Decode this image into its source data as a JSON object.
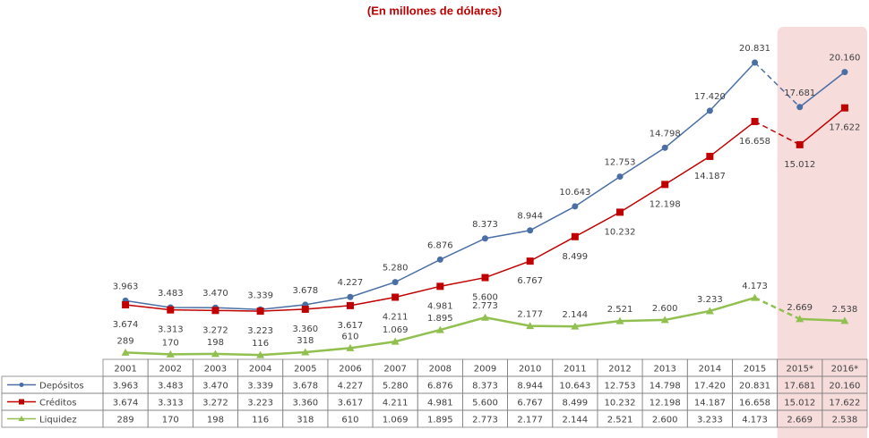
{
  "chart_data": {
    "type": "line",
    "subtitle": "(En millones de dólares)",
    "categories": [
      "2001",
      "2002",
      "2003",
      "2004",
      "2005",
      "2006",
      "2007",
      "2008",
      "2009",
      "2010",
      "2011",
      "2012",
      "2013",
      "2014",
      "2015",
      "2015*",
      "2016*"
    ],
    "series": [
      {
        "name": "Depósitos",
        "color": "#4a6fa5",
        "marker": "circle",
        "values": [
          3963,
          3483,
          3470,
          3339,
          3678,
          4227,
          5280,
          6876,
          8373,
          8944,
          10643,
          12753,
          14798,
          17420,
          20831,
          17681,
          20160
        ],
        "value_labels": [
          "3.963",
          "3.483",
          "3.470",
          "3.339",
          "3.678",
          "4.227",
          "5.280",
          "6.876",
          "8.373",
          "8.944",
          "10.643",
          "12.753",
          "14.798",
          "17.420",
          "20.831",
          "17.681",
          "20.160"
        ]
      },
      {
        "name": "Créditos",
        "color": "#c00000",
        "marker": "square",
        "values": [
          3674,
          3313,
          3272,
          3223,
          3360,
          3617,
          4211,
          4981,
          5600,
          6767,
          8499,
          10232,
          12198,
          14187,
          16658,
          15012,
          17622
        ],
        "value_labels": [
          "3.674",
          "3.313",
          "3.272",
          "3.223",
          "3.360",
          "3.617",
          "4.211",
          "4.981",
          "5.600",
          "6.767",
          "8.499",
          "10.232",
          "12.198",
          "14.187",
          "16.658",
          "15.012",
          "17.622"
        ]
      },
      {
        "name": "Liquidez",
        "color": "#92c050",
        "marker": "triangle",
        "values": [
          289,
          170,
          198,
          116,
          318,
          610,
          1069,
          1895,
          2773,
          2177,
          2144,
          2521,
          2600,
          3233,
          4173,
          2669,
          2538
        ],
        "value_labels": [
          "289",
          "170",
          "198",
          "116",
          "318",
          "610",
          "1.069",
          "1.895",
          "2.773",
          "2.177",
          "2.144",
          "2.521",
          "2.600",
          "3.233",
          "4.173",
          "2.669",
          "2.538"
        ]
      }
    ]
  }
}
